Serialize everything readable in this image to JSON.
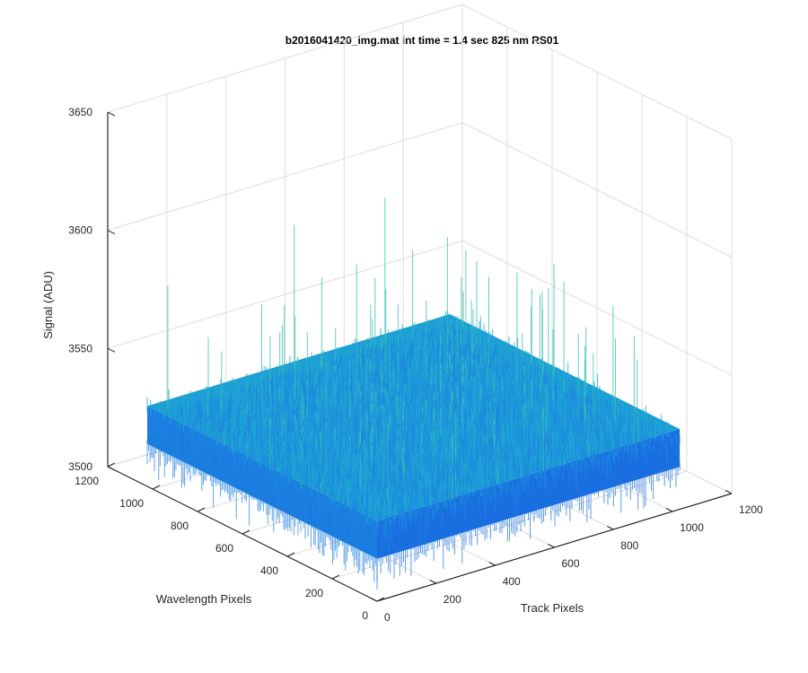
{
  "chart_data": {
    "type": "surface",
    "title": "b2016041420_img.mat int time = 1.4 sec  825 nm RS01",
    "xlabel": "Track Pixels",
    "ylabel": "Wavelength Pixels",
    "zlabel": "Signal (ADU)",
    "xlim": [
      0,
      1200
    ],
    "ylim": [
      0,
      1200
    ],
    "zlim": [
      3500,
      3650
    ],
    "x_ticks": [
      "0",
      "200",
      "400",
      "600",
      "800",
      "1000",
      "1200"
    ],
    "y_ticks": [
      "0",
      "200",
      "400",
      "600",
      "800",
      "1000",
      "1200"
    ],
    "z_ticks": [
      "3500",
      "3550",
      "3600",
      "3650"
    ],
    "surface_extent": {
      "x": [
        0,
        1024
      ],
      "y": [
        0,
        1024
      ]
    },
    "signal_mean": 3530,
    "signal_range": [
      3505,
      3600
    ],
    "grid": true,
    "box": "back-planes",
    "colors": {
      "surface_low": "#1a6fe0",
      "surface_mid": "#1d9fd6",
      "surface_high": "#3cc0b0",
      "grid": "#dcdcdc",
      "axis": "#262626"
    }
  }
}
